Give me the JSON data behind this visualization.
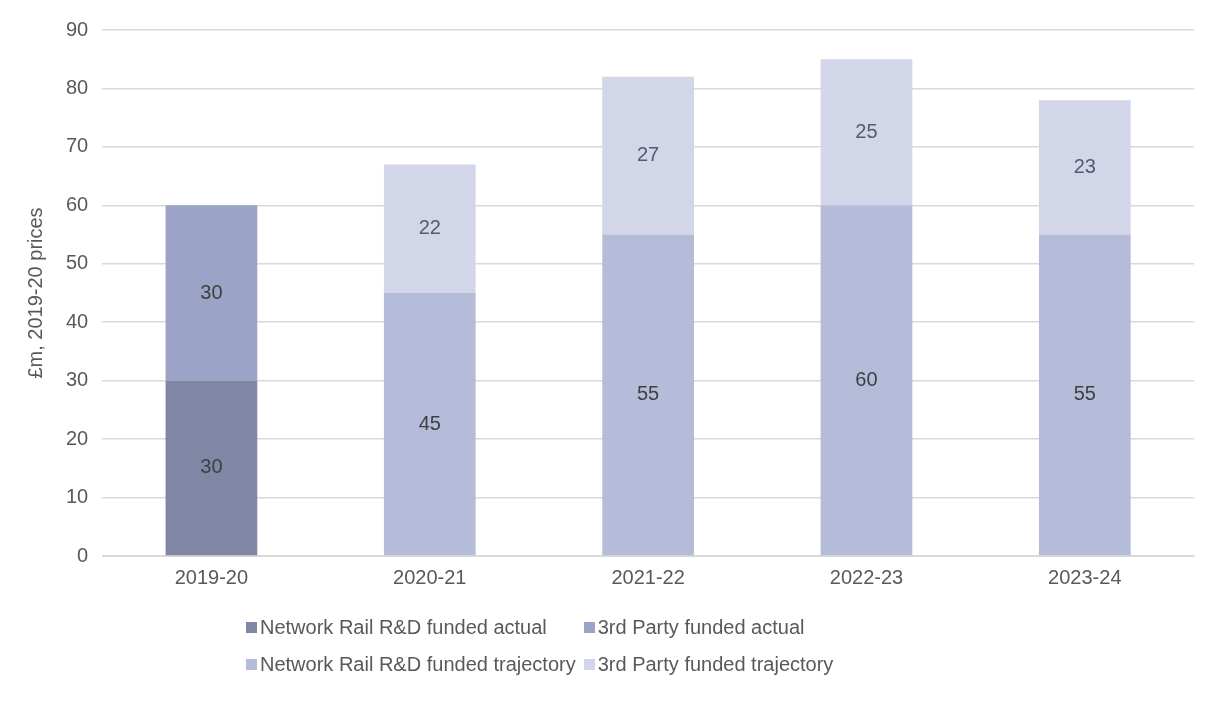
{
  "chart_data": {
    "type": "bar",
    "stacked": true,
    "ylabel": "£m, 2019-20 prices",
    "categories": [
      "2019-20",
      "2020-21",
      "2021-22",
      "2022-23",
      "2023-24"
    ],
    "series": [
      {
        "name": "Network Rail R&D funded actual",
        "color": "#8087a4",
        "values": [
          30,
          null,
          null,
          null,
          null
        ]
      },
      {
        "name": "3rd Party funded actual",
        "color": "#9ba3c6",
        "values": [
          30,
          null,
          null,
          null,
          null
        ]
      },
      {
        "name": "Network Rail R&D funded trajectory",
        "color": "#b5bcd9",
        "values": [
          null,
          45,
          55,
          60,
          55
        ]
      },
      {
        "name": "3rd Party funded trajectory",
        "color": "#d3d5e8",
        "values": [
          null,
          22,
          27,
          25,
          23
        ]
      }
    ],
    "ylim": [
      0,
      90
    ],
    "yticks": [
      0,
      10,
      20,
      30,
      40,
      50,
      60,
      70,
      80,
      90
    ],
    "grid": "y",
    "legend": "bottom",
    "data_labels": true
  }
}
